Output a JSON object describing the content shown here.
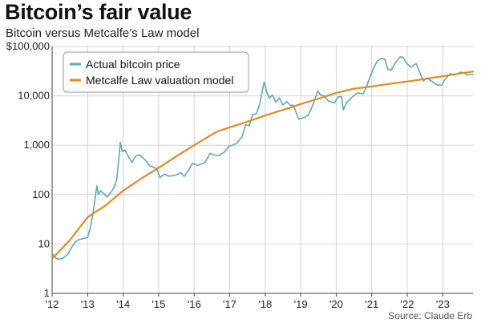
{
  "chart_data": {
    "type": "line",
    "title": "Bitcoin’s fair value",
    "subtitle": "Bitcoin versus Metcalfe’s Law model",
    "source": "Source: Claude Erb",
    "y_scale": "log",
    "ylim": [
      1,
      100000
    ],
    "xlim": [
      2012,
      2023.85
    ],
    "y_ticks": [
      1,
      10,
      100,
      1000,
      10000,
      100000
    ],
    "y_tick_labels": [
      "1",
      "10",
      "100",
      "1,000",
      "10,000",
      "$100,000"
    ],
    "x_ticks": [
      2012,
      2013,
      2014,
      2015,
      2016,
      2017,
      2018,
      2019,
      2020,
      2021,
      2022,
      2023
    ],
    "x_tick_labels": [
      "'12",
      "'13",
      "'14",
      "'15",
      "'16",
      "'17",
      "'18",
      "'19",
      "'20",
      "'21",
      "'22",
      "'23"
    ],
    "grid": true,
    "legend_position": "top-left",
    "series": [
      {
        "name": "Actual bitcoin price",
        "color": "#5ba8c4",
        "points": [
          [
            2012.0,
            6.5
          ],
          [
            2012.1,
            5.2
          ],
          [
            2012.2,
            4.9
          ],
          [
            2012.3,
            5.1
          ],
          [
            2012.45,
            6.3
          ],
          [
            2012.55,
            8.5
          ],
          [
            2012.65,
            11
          ],
          [
            2012.75,
            12.2
          ],
          [
            2012.9,
            13
          ],
          [
            2013.0,
            13.5
          ],
          [
            2013.08,
            22
          ],
          [
            2013.16,
            45
          ],
          [
            2013.26,
            150
          ],
          [
            2013.3,
            100
          ],
          [
            2013.36,
            120
          ],
          [
            2013.45,
            105
          ],
          [
            2013.55,
            90
          ],
          [
            2013.65,
            110
          ],
          [
            2013.75,
            140
          ],
          [
            2013.82,
            200
          ],
          [
            2013.87,
            450
          ],
          [
            2013.92,
            1150
          ],
          [
            2013.97,
            750
          ],
          [
            2014.05,
            800
          ],
          [
            2014.15,
            580
          ],
          [
            2014.25,
            450
          ],
          [
            2014.35,
            600
          ],
          [
            2014.45,
            640
          ],
          [
            2014.55,
            560
          ],
          [
            2014.65,
            480
          ],
          [
            2014.75,
            380
          ],
          [
            2014.85,
            360
          ],
          [
            2014.95,
            330
          ],
          [
            2015.04,
            220
          ],
          [
            2015.15,
            260
          ],
          [
            2015.3,
            235
          ],
          [
            2015.5,
            250
          ],
          [
            2015.62,
            280
          ],
          [
            2015.72,
            235
          ],
          [
            2015.85,
            320
          ],
          [
            2015.95,
            430
          ],
          [
            2016.1,
            390
          ],
          [
            2016.3,
            450
          ],
          [
            2016.45,
            680
          ],
          [
            2016.55,
            640
          ],
          [
            2016.7,
            610
          ],
          [
            2016.85,
            730
          ],
          [
            2016.98,
            960
          ],
          [
            2017.05,
            980
          ],
          [
            2017.2,
            1100
          ],
          [
            2017.35,
            1500
          ],
          [
            2017.45,
            2600
          ],
          [
            2017.55,
            2500
          ],
          [
            2017.65,
            4200
          ],
          [
            2017.75,
            4300
          ],
          [
            2017.85,
            7000
          ],
          [
            2017.92,
            13000
          ],
          [
            2017.97,
            19000
          ],
          [
            2018.05,
            11500
          ],
          [
            2018.12,
            9000
          ],
          [
            2018.2,
            10500
          ],
          [
            2018.3,
            7500
          ],
          [
            2018.4,
            9000
          ],
          [
            2018.5,
            6500
          ],
          [
            2018.6,
            7700
          ],
          [
            2018.7,
            6500
          ],
          [
            2018.8,
            6400
          ],
          [
            2018.9,
            4000
          ],
          [
            2018.95,
            3400
          ],
          [
            2019.08,
            3600
          ],
          [
            2019.2,
            4000
          ],
          [
            2019.3,
            5500
          ],
          [
            2019.4,
            8500
          ],
          [
            2019.48,
            12500
          ],
          [
            2019.55,
            10500
          ],
          [
            2019.65,
            10000
          ],
          [
            2019.75,
            8200
          ],
          [
            2019.85,
            7500
          ],
          [
            2019.95,
            7200
          ],
          [
            2020.05,
            9500
          ],
          [
            2020.15,
            9600
          ],
          [
            2020.2,
            5200
          ],
          [
            2020.3,
            7500
          ],
          [
            2020.45,
            9500
          ],
          [
            2020.6,
            11500
          ],
          [
            2020.75,
            11000
          ],
          [
            2020.85,
            15000
          ],
          [
            2020.95,
            24000
          ],
          [
            2021.03,
            34000
          ],
          [
            2021.15,
            50000
          ],
          [
            2021.27,
            58000
          ],
          [
            2021.37,
            55000
          ],
          [
            2021.45,
            35000
          ],
          [
            2021.55,
            33000
          ],
          [
            2021.65,
            45000
          ],
          [
            2021.8,
            62000
          ],
          [
            2021.88,
            60000
          ],
          [
            2021.98,
            46000
          ],
          [
            2022.1,
            38000
          ],
          [
            2022.25,
            45000
          ],
          [
            2022.35,
            30000
          ],
          [
            2022.45,
            20000
          ],
          [
            2022.55,
            23000
          ],
          [
            2022.7,
            19500
          ],
          [
            2022.85,
            16500
          ],
          [
            2022.97,
            16600
          ],
          [
            2023.05,
            21000
          ],
          [
            2023.2,
            28000
          ],
          [
            2023.35,
            27000
          ],
          [
            2023.5,
            30000
          ],
          [
            2023.6,
            29000
          ],
          [
            2023.7,
            26500
          ],
          [
            2023.85,
            27000
          ]
        ]
      },
      {
        "name": "Metcalfe Law valuation model",
        "color": "#e8891c",
        "points": [
          [
            2012.0,
            5
          ],
          [
            2012.5,
            12
          ],
          [
            2013.0,
            35
          ],
          [
            2013.5,
            60
          ],
          [
            2014.0,
            120
          ],
          [
            2014.5,
            210
          ],
          [
            2015.0,
            350
          ],
          [
            2015.5,
            600
          ],
          [
            2016.0,
            1000
          ],
          [
            2016.5,
            1650
          ],
          [
            2016.65,
            1900
          ],
          [
            2017.0,
            2300
          ],
          [
            2017.5,
            3000
          ],
          [
            2018.0,
            4000
          ],
          [
            2018.5,
            5200
          ],
          [
            2019.0,
            6800
          ],
          [
            2019.5,
            8800
          ],
          [
            2020.0,
            11500
          ],
          [
            2020.5,
            14000
          ],
          [
            2021.0,
            15500
          ],
          [
            2021.5,
            17500
          ],
          [
            2022.0,
            19500
          ],
          [
            2022.5,
            22000
          ],
          [
            2023.0,
            25000
          ],
          [
            2023.5,
            28500
          ],
          [
            2023.85,
            31000
          ]
        ]
      }
    ]
  }
}
